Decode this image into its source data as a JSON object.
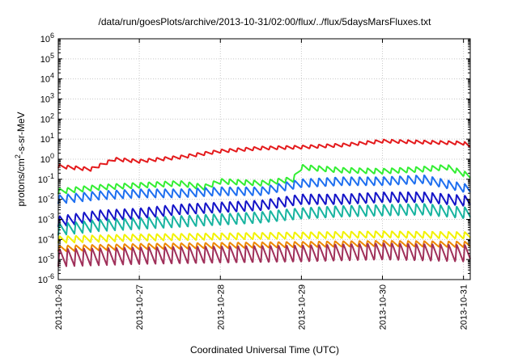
{
  "chart_data": {
    "type": "line",
    "title": "/data/run/goesPlots/archive/2013-10-31/02:00/flux/../flux/5daysMarsFluxes.txt",
    "xlabel": "Coordinated Universal Time (UTC)",
    "ylabel_parts": {
      "main": "protons/cm",
      "sup": "2",
      "rest": "-s-sr-MeV"
    },
    "yscale": "log",
    "ylim_exp": [
      -6,
      6
    ],
    "yticks": [
      {
        "base": "10",
        "exp": "-6"
      },
      {
        "base": "10",
        "exp": "-5"
      },
      {
        "base": "10",
        "exp": "-4"
      },
      {
        "base": "10",
        "exp": "-3"
      },
      {
        "base": "10",
        "exp": "-2"
      },
      {
        "base": "10",
        "exp": "-1"
      },
      {
        "base": "10",
        "exp": "0"
      },
      {
        "base": "10",
        "exp": "1"
      },
      {
        "base": "10",
        "exp": "2"
      },
      {
        "base": "10",
        "exp": "3"
      },
      {
        "base": "10",
        "exp": "4"
      },
      {
        "base": "10",
        "exp": "5"
      },
      {
        "base": "10",
        "exp": "6"
      }
    ],
    "xlim": [
      "2013-10-26T00:00",
      "2013-10-31T02:00"
    ],
    "xticks": [
      "2013-10-26",
      "2013-10-27",
      "2013-10-28",
      "2013-10-29",
      "2013-10-30",
      "2013-10-31"
    ],
    "grid": true,
    "cycles_per_day": 10,
    "series": [
      {
        "color": "#e41a1c",
        "amplitude": 0.18,
        "base_log": [
          [
            0,
            -0.35
          ],
          [
            0.4,
            -0.5
          ],
          [
            0.7,
            0.0
          ],
          [
            1.0,
            -0.1
          ],
          [
            1.5,
            0.1
          ],
          [
            2.0,
            0.4
          ],
          [
            2.5,
            0.55
          ],
          [
            3.0,
            0.6
          ],
          [
            3.5,
            0.7
          ],
          [
            4.0,
            0.9
          ],
          [
            4.5,
            0.85
          ],
          [
            5.0,
            0.8
          ],
          [
            5.08,
            0.65
          ]
        ]
      },
      {
        "color": "#33ee33",
        "amplitude": 0.28,
        "base_log": [
          [
            0,
            -1.6
          ],
          [
            0.5,
            -1.4
          ],
          [
            1.0,
            -1.3
          ],
          [
            1.5,
            -1.2
          ],
          [
            1.8,
            -1.4
          ],
          [
            2.0,
            -1.1
          ],
          [
            2.5,
            -1.2
          ],
          [
            2.9,
            -1.0
          ],
          [
            3.0,
            -0.4
          ],
          [
            3.5,
            -0.55
          ],
          [
            4.0,
            -0.6
          ],
          [
            4.5,
            -0.5
          ],
          [
            4.8,
            -0.4
          ],
          [
            5.08,
            -0.85
          ]
        ]
      },
      {
        "color": "#1e6ff0",
        "amplitude": 0.45,
        "base_log": [
          [
            0,
            -2.0
          ],
          [
            0.5,
            -1.8
          ],
          [
            1.0,
            -1.7
          ],
          [
            1.5,
            -1.7
          ],
          [
            2.0,
            -1.6
          ],
          [
            2.5,
            -1.6
          ],
          [
            3.0,
            -1.2
          ],
          [
            3.5,
            -1.1
          ],
          [
            4.0,
            -1.1
          ],
          [
            4.5,
            -1.0
          ],
          [
            5.08,
            -1.5
          ]
        ]
      },
      {
        "color": "#1414c8",
        "amplitude": 0.55,
        "base_log": [
          [
            0,
            -3.1
          ],
          [
            0.5,
            -2.8
          ],
          [
            1.0,
            -2.7
          ],
          [
            1.5,
            -2.5
          ],
          [
            2.0,
            -2.4
          ],
          [
            2.5,
            -2.3
          ],
          [
            3.0,
            -2.0
          ],
          [
            3.5,
            -2.0
          ],
          [
            4.0,
            -1.9
          ],
          [
            4.5,
            -1.9
          ],
          [
            5.08,
            -2.1
          ]
        ]
      },
      {
        "color": "#18b4a0",
        "amplitude": 0.6,
        "base_log": [
          [
            0,
            -3.5
          ],
          [
            0.5,
            -3.3
          ],
          [
            1.0,
            -3.2
          ],
          [
            1.5,
            -3.1
          ],
          [
            2.0,
            -3.0
          ],
          [
            2.5,
            -2.9
          ],
          [
            3.0,
            -2.7
          ],
          [
            3.5,
            -2.6
          ],
          [
            4.0,
            -2.55
          ],
          [
            4.5,
            -2.5
          ],
          [
            5.08,
            -2.7
          ]
        ]
      },
      {
        "color": "#f2f200",
        "amplitude": 0.35,
        "base_log": [
          [
            0,
            -4.0
          ],
          [
            1.0,
            -3.9
          ],
          [
            2.0,
            -3.85
          ],
          [
            3.0,
            -3.8
          ],
          [
            4.0,
            -3.75
          ],
          [
            5.08,
            -3.8
          ]
        ]
      },
      {
        "color": "#ee8800",
        "amplitude": 0.3,
        "base_log": [
          [
            0,
            -4.45
          ],
          [
            1.0,
            -4.35
          ],
          [
            2.0,
            -4.3
          ],
          [
            3.0,
            -4.25
          ],
          [
            4.0,
            -4.2
          ],
          [
            5.08,
            -4.25
          ]
        ]
      },
      {
        "color": "#a0305a",
        "amplitude": 0.9,
        "base_log": [
          [
            0,
            -4.9
          ],
          [
            1.0,
            -4.8
          ],
          [
            2.0,
            -4.75
          ],
          [
            3.0,
            -4.7
          ],
          [
            4.0,
            -4.6
          ],
          [
            5.08,
            -4.7
          ]
        ]
      }
    ]
  }
}
